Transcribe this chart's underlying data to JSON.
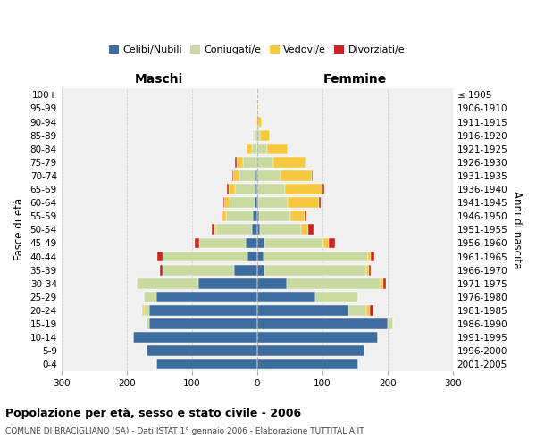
{
  "age_groups": [
    "100+",
    "95-99",
    "90-94",
    "85-89",
    "80-84",
    "75-79",
    "70-74",
    "65-69",
    "60-64",
    "55-59",
    "50-54",
    "45-49",
    "40-44",
    "35-39",
    "30-34",
    "25-29",
    "20-24",
    "15-19",
    "10-14",
    "5-9",
    "0-4"
  ],
  "birth_years": [
    "≤ 1905",
    "1906-1910",
    "1911-1915",
    "1916-1920",
    "1921-1925",
    "1926-1930",
    "1931-1935",
    "1936-1940",
    "1941-1945",
    "1946-1950",
    "1951-1955",
    "1956-1960",
    "1961-1965",
    "1966-1970",
    "1971-1975",
    "1976-1980",
    "1981-1985",
    "1986-1990",
    "1991-1995",
    "1996-2000",
    "2001-2005"
  ],
  "colors": {
    "celibi": "#3d6d9e",
    "coniugati": "#c8daa0",
    "vedovi": "#f5c840",
    "divorziati": "#cc2222"
  },
  "maschi": {
    "celibi": [
      0,
      0,
      0,
      1,
      0,
      1,
      2,
      2,
      4,
      6,
      8,
      18,
      15,
      35,
      90,
      155,
      165,
      165,
      190,
      170,
      155
    ],
    "coniugati": [
      0,
      0,
      1,
      4,
      8,
      20,
      25,
      32,
      38,
      42,
      55,
      70,
      130,
      110,
      95,
      18,
      8,
      4,
      0,
      0,
      0
    ],
    "vedovi": [
      0,
      0,
      1,
      2,
      8,
      10,
      10,
      10,
      8,
      5,
      3,
      0,
      0,
      0,
      0,
      0,
      3,
      0,
      0,
      0,
      0
    ],
    "divorziati": [
      0,
      0,
      0,
      0,
      0,
      3,
      1,
      2,
      2,
      2,
      4,
      8,
      8,
      4,
      0,
      0,
      0,
      0,
      0,
      0,
      0
    ]
  },
  "femmine": {
    "celibi": [
      0,
      0,
      0,
      0,
      0,
      0,
      1,
      1,
      2,
      3,
      5,
      12,
      10,
      12,
      45,
      90,
      140,
      200,
      185,
      165,
      155
    ],
    "coniugati": [
      0,
      0,
      1,
      5,
      15,
      25,
      35,
      42,
      45,
      48,
      62,
      90,
      160,
      155,
      145,
      65,
      28,
      8,
      0,
      0,
      0
    ],
    "vedovi": [
      0,
      2,
      6,
      14,
      32,
      50,
      48,
      58,
      48,
      22,
      12,
      8,
      5,
      5,
      3,
      0,
      5,
      0,
      0,
      0,
      0
    ],
    "divorziati": [
      0,
      0,
      0,
      0,
      0,
      0,
      2,
      2,
      2,
      3,
      8,
      10,
      5,
      3,
      5,
      0,
      5,
      0,
      0,
      0,
      0
    ]
  },
  "xlim": 300,
  "title": "Popolazione per età, sesso e stato civile - 2006",
  "subtitle": "COMUNE DI BRACIGLIANO (SA) - Dati ISTAT 1° gennaio 2006 - Elaborazione TUTTITALIA.IT",
  "ylabel_left": "Fasce di età",
  "ylabel_right": "Anni di nascita",
  "xlabel_left": "Maschi",
  "xlabel_right": "Femmine"
}
